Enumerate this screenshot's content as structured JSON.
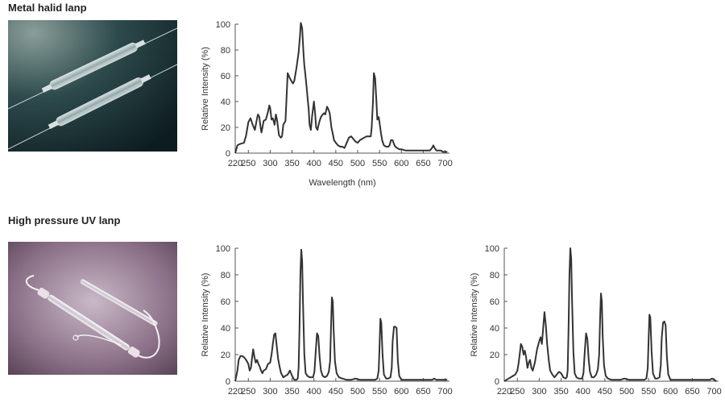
{
  "sections": [
    {
      "title": "Metal halid lanp"
    },
    {
      "title": "High pressure UV lanp"
    }
  ],
  "colors": {
    "line": "#333333",
    "axis": "#555555"
  },
  "chart_data": [
    {
      "type": "line",
      "title": "",
      "xlabel": "Wavelength (nm)",
      "ylabel": "Relative Intensity (%)",
      "xlim": [
        220,
        710
      ],
      "ylim": [
        0,
        100
      ],
      "xticks": [
        220,
        250,
        300,
        350,
        400,
        450,
        500,
        550,
        600,
        650,
        700
      ],
      "yticks": [
        0,
        20,
        40,
        60,
        80,
        100
      ],
      "x": [
        220,
        225,
        230,
        240,
        245,
        250,
        255,
        260,
        265,
        270,
        272,
        275,
        278,
        280,
        285,
        290,
        295,
        298,
        300,
        303,
        306,
        310,
        313,
        316,
        320,
        324,
        327,
        330,
        335,
        340,
        345,
        350,
        352,
        355,
        360,
        365,
        368,
        370,
        373,
        376,
        378,
        380,
        383,
        386,
        388,
        390,
        393,
        396,
        400,
        403,
        405,
        408,
        410,
        413,
        416,
        420,
        423,
        426,
        430,
        433,
        436,
        440,
        443,
        446,
        450,
        455,
        460,
        465,
        470,
        475,
        480,
        485,
        490,
        495,
        500,
        505,
        510,
        515,
        520,
        525,
        530,
        532,
        535,
        537,
        540,
        543,
        545,
        548,
        550,
        553,
        556,
        560,
        565,
        570,
        573,
        576,
        580,
        583,
        586,
        590,
        595,
        600,
        610,
        620,
        630,
        640,
        650,
        660,
        665,
        670,
        673,
        676,
        680,
        685,
        690,
        695,
        700,
        705
      ],
      "y": [
        0,
        6,
        7,
        8,
        14,
        24,
        27,
        22,
        18,
        27,
        30,
        28,
        20,
        16,
        25,
        26,
        32,
        37,
        35,
        26,
        27,
        22,
        30,
        25,
        14,
        12,
        13,
        22,
        25,
        62,
        58,
        55,
        54,
        56,
        66,
        78,
        90,
        101,
        97,
        78,
        68,
        62,
        52,
        41,
        34,
        22,
        18,
        29,
        40,
        30,
        20,
        18,
        21,
        25,
        28,
        30,
        31,
        30,
        36,
        34,
        31,
        20,
        15,
        10,
        8,
        6,
        5,
        5,
        4,
        8,
        12,
        13,
        11,
        9,
        8,
        10,
        11,
        12,
        13,
        13,
        13,
        20,
        40,
        62,
        58,
        40,
        26,
        28,
        24,
        16,
        10,
        6,
        5,
        5,
        6,
        10,
        10,
        7,
        5,
        4,
        3,
        3,
        2,
        2,
        2,
        2,
        2,
        2,
        2,
        4,
        6,
        4,
        2,
        2,
        2,
        1,
        1,
        1
      ],
      "no_axis_title": false
    },
    {
      "type": "line",
      "title": "",
      "xlabel": "",
      "ylabel": "Relative Intensity (%)",
      "xlim": [
        220,
        710
      ],
      "ylim": [
        0,
        100
      ],
      "xticks": [
        220,
        250,
        300,
        350,
        400,
        450,
        500,
        550,
        600,
        650,
        700
      ],
      "yticks": [
        0,
        20,
        40,
        60,
        80,
        100
      ],
      "x": [
        220,
        225,
        228,
        232,
        236,
        240,
        245,
        250,
        253,
        256,
        258,
        261,
        264,
        267,
        270,
        273,
        276,
        279,
        282,
        285,
        290,
        295,
        300,
        303,
        306,
        309,
        312,
        315,
        318,
        322,
        325,
        330,
        335,
        340,
        345,
        350,
        355,
        360,
        363,
        365,
        367,
        369,
        371,
        373,
        375,
        378,
        381,
        385,
        390,
        395,
        398,
        401,
        404,
        407,
        410,
        413,
        416,
        420,
        425,
        430,
        434,
        437,
        439,
        441,
        443,
        445,
        448,
        452,
        457,
        465,
        475,
        485,
        495,
        505,
        515,
        525,
        535,
        540,
        545,
        548,
        550,
        552,
        554,
        557,
        560,
        565,
        570,
        575,
        578,
        580,
        583,
        586,
        589,
        592,
        595,
        600,
        610,
        620,
        630,
        640,
        650,
        660,
        670,
        675,
        680,
        690,
        700,
        705
      ],
      "y": [
        0,
        8,
        16,
        19,
        19,
        18,
        16,
        13,
        8,
        10,
        16,
        24,
        18,
        14,
        16,
        13,
        11,
        8,
        6,
        8,
        9,
        13,
        14,
        20,
        28,
        35,
        36,
        26,
        17,
        10,
        6,
        3,
        4,
        5,
        8,
        4,
        1,
        1,
        2,
        10,
        40,
        80,
        99,
        90,
        60,
        20,
        6,
        4,
        3,
        3,
        3,
        7,
        22,
        36,
        34,
        18,
        8,
        4,
        3,
        4,
        7,
        15,
        40,
        63,
        60,
        40,
        15,
        6,
        3,
        2,
        1,
        1,
        2,
        1,
        1,
        1,
        1,
        1,
        2,
        8,
        25,
        47,
        44,
        20,
        5,
        2,
        2,
        3,
        10,
        30,
        41,
        41,
        40,
        15,
        4,
        1,
        1,
        1,
        1,
        1,
        1,
        1,
        1,
        2,
        1,
        1,
        1,
        1
      ],
      "no_axis_title": true
    },
    {
      "type": "line",
      "title": "",
      "xlabel": "",
      "ylabel": "Relative Intensity (%)",
      "xlim": [
        220,
        710
      ],
      "ylim": [
        0,
        100
      ],
      "xticks": [
        220,
        250,
        300,
        350,
        400,
        450,
        500,
        550,
        600,
        650,
        700
      ],
      "yticks": [
        0,
        20,
        40,
        60,
        80,
        100
      ],
      "x": [
        220,
        225,
        230,
        235,
        240,
        245,
        250,
        253,
        256,
        258,
        261,
        264,
        267,
        270,
        273,
        276,
        279,
        282,
        285,
        290,
        295,
        300,
        303,
        306,
        309,
        312,
        315,
        318,
        322,
        325,
        330,
        335,
        340,
        345,
        350,
        355,
        360,
        363,
        365,
        367,
        369,
        371,
        373,
        375,
        378,
        381,
        385,
        390,
        395,
        398,
        401,
        404,
        407,
        410,
        413,
        416,
        420,
        425,
        430,
        434,
        437,
        439,
        441,
        443,
        445,
        448,
        452,
        457,
        465,
        475,
        485,
        495,
        505,
        515,
        525,
        535,
        540,
        545,
        548,
        550,
        552,
        554,
        557,
        560,
        565,
        570,
        575,
        578,
        580,
        583,
        586,
        589,
        592,
        595,
        600,
        610,
        620,
        630,
        640,
        650,
        660,
        670,
        680,
        690,
        695,
        700,
        705
      ],
      "y": [
        0,
        1,
        2,
        3,
        4,
        5,
        8,
        14,
        22,
        28,
        26,
        20,
        23,
        18,
        10,
        14,
        16,
        10,
        8,
        14,
        24,
        30,
        33,
        28,
        40,
        52,
        42,
        28,
        15,
        8,
        5,
        3,
        5,
        7,
        6,
        3,
        2,
        3,
        8,
        40,
        80,
        100,
        92,
        62,
        22,
        6,
        3,
        2,
        2,
        2,
        6,
        22,
        36,
        32,
        16,
        7,
        3,
        3,
        5,
        9,
        20,
        46,
        66,
        60,
        35,
        12,
        4,
        2,
        1,
        1,
        1,
        2,
        1,
        1,
        1,
        1,
        1,
        2,
        10,
        30,
        50,
        48,
        22,
        6,
        2,
        2,
        3,
        12,
        32,
        44,
        45,
        42,
        18,
        5,
        1,
        1,
        1,
        1,
        1,
        1,
        1,
        1,
        1,
        1,
        2,
        1,
        0
      ],
      "no_axis_title": true
    }
  ]
}
